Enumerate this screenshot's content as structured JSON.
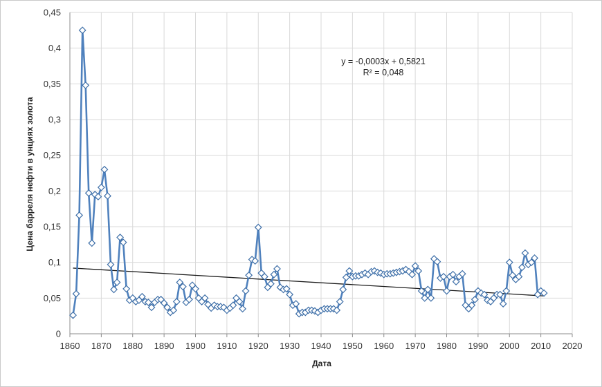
{
  "chart_data": {
    "type": "line",
    "title": "",
    "xlabel": "Дата",
    "ylabel": "Цена барреля нефти в унциях золота",
    "xlim": [
      1860,
      2020
    ],
    "ylim": [
      0,
      0.45
    ],
    "x_ticks": [
      "1860",
      "1870",
      "1880",
      "1890",
      "1900",
      "1910",
      "1920",
      "1930",
      "1940",
      "1950",
      "1960",
      "1970",
      "1980",
      "1990",
      "2000",
      "2010",
      "2020"
    ],
    "y_ticks": [
      "0",
      "0,05",
      "0,1",
      "0,15",
      "0,2",
      "0,25",
      "0,3",
      "0,35",
      "0,4",
      "0,45"
    ],
    "grid": true,
    "legend": "none",
    "colors": {
      "series": "#4f81bd",
      "marker_edge": "#3e6fa8",
      "trend": "#1a1a1a",
      "grid": "#d9d9d9"
    },
    "annotation": {
      "line1": "y = -0,0003x + 0,5821",
      "line2": "R² = 0,048"
    },
    "trendline": {
      "slope": -0.0003,
      "intercept": 0.5821,
      "x_start": 1861,
      "x_end": 2011,
      "y_start": 0.092,
      "y_end": 0.053
    },
    "series": [
      {
        "x": [
          1861,
          1862,
          1863,
          1864,
          1865,
          1866,
          1867,
          1868,
          1869,
          1870,
          1871,
          1872,
          1873,
          1874,
          1875,
          1876,
          1877,
          1878,
          1879,
          1880,
          1881,
          1882,
          1883,
          1884,
          1885,
          1886,
          1887,
          1888,
          1889,
          1890,
          1891,
          1892,
          1893,
          1894,
          1895,
          1896,
          1897,
          1898,
          1899,
          1900,
          1901,
          1902,
          1903,
          1904,
          1905,
          1906,
          1907,
          1908,
          1909,
          1910,
          1911,
          1912,
          1913,
          1914,
          1915,
          1916,
          1917,
          1918,
          1919,
          1920,
          1921,
          1922,
          1923,
          1924,
          1925,
          1926,
          1927,
          1928,
          1929,
          1930,
          1931,
          1932,
          1933,
          1934,
          1935,
          1936,
          1937,
          1938,
          1939,
          1940,
          1941,
          1942,
          1943,
          1944,
          1945,
          1946,
          1947,
          1948,
          1949,
          1950,
          1951,
          1952,
          1953,
          1954,
          1955,
          1956,
          1957,
          1958,
          1959,
          1960,
          1961,
          1962,
          1963,
          1964,
          1965,
          1966,
          1967,
          1968,
          1969,
          1970,
          1971,
          1972,
          1973,
          1974,
          1975,
          1976,
          1977,
          1978,
          1979,
          1980,
          1981,
          1982,
          1983,
          1984,
          1985,
          1986,
          1987,
          1988,
          1989,
          1990,
          1991,
          1992,
          1993,
          1994,
          1995,
          1996,
          1997,
          1998,
          1999,
          2000,
          2001,
          2002,
          2003,
          2004,
          2005,
          2006,
          2007,
          2008,
          2009,
          2010,
          2011
        ],
        "values": [
          0.026,
          0.056,
          0.166,
          0.425,
          0.348,
          0.197,
          0.127,
          0.195,
          0.192,
          0.205,
          0.23,
          0.193,
          0.097,
          0.062,
          0.072,
          0.135,
          0.128,
          0.063,
          0.047,
          0.05,
          0.045,
          0.047,
          0.052,
          0.045,
          0.044,
          0.037,
          0.044,
          0.048,
          0.048,
          0.043,
          0.037,
          0.03,
          0.033,
          0.045,
          0.072,
          0.066,
          0.044,
          0.048,
          0.068,
          0.063,
          0.05,
          0.045,
          0.05,
          0.041,
          0.036,
          0.04,
          0.038,
          0.038,
          0.037,
          0.033,
          0.036,
          0.04,
          0.05,
          0.045,
          0.035,
          0.06,
          0.082,
          0.104,
          0.102,
          0.149,
          0.085,
          0.08,
          0.065,
          0.07,
          0.083,
          0.091,
          0.065,
          0.062,
          0.063,
          0.055,
          0.04,
          0.042,
          0.028,
          0.03,
          0.03,
          0.033,
          0.033,
          0.032,
          0.03,
          0.033,
          0.035,
          0.035,
          0.035,
          0.035,
          0.033,
          0.045,
          0.062,
          0.079,
          0.088,
          0.08,
          0.081,
          0.081,
          0.083,
          0.085,
          0.083,
          0.087,
          0.088,
          0.086,
          0.085,
          0.083,
          0.084,
          0.084,
          0.085,
          0.086,
          0.087,
          0.088,
          0.09,
          0.087,
          0.083,
          0.095,
          0.088,
          0.06,
          0.05,
          0.062,
          0.05,
          0.105,
          0.101,
          0.078,
          0.08,
          0.06,
          0.08,
          0.083,
          0.073,
          0.08,
          0.084,
          0.04,
          0.035,
          0.04,
          0.048,
          0.06,
          0.057,
          0.055,
          0.047,
          0.045,
          0.05,
          0.055,
          0.055,
          0.042,
          0.06,
          0.1,
          0.082,
          0.076,
          0.08,
          0.093,
          0.113,
          0.097,
          0.1,
          0.106,
          0.055,
          0.06,
          0.057
        ]
      }
    ]
  }
}
